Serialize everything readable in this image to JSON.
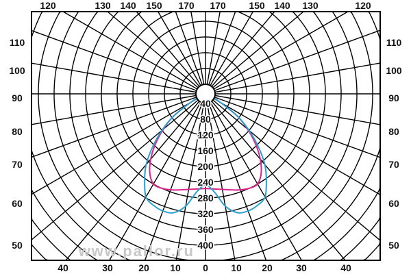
{
  "chart_data": {
    "type": "polar",
    "angle_unit": "degrees",
    "angle_ticks_bottom": [
      "40",
      "30",
      "20",
      "10",
      "0",
      "10",
      "20",
      "30",
      "40"
    ],
    "angle_ticks_top": [
      "120",
      "130",
      "140",
      "150",
      "170",
      "170",
      "150",
      "140",
      "130",
      "120"
    ],
    "angle_ticks_left": [
      "110",
      "100",
      "90",
      "80",
      "70",
      "60",
      "50"
    ],
    "angle_ticks_right": [
      "110",
      "100",
      "90",
      "80",
      "70",
      "60",
      "50"
    ],
    "radial_ticks": [
      "40",
      "80",
      "120",
      "160",
      "200",
      "240",
      "280",
      "320",
      "360",
      "400"
    ],
    "radial_step": 40,
    "grid": true,
    "angle_step_grid": 10,
    "symmetric": true,
    "series": [
      {
        "color": "#d6248a",
        "angles": [
          0,
          5,
          10,
          15,
          20,
          25,
          30,
          35,
          40,
          45,
          50,
          55,
          60,
          65
        ],
        "values": [
          256,
          258,
          262,
          268,
          275,
          280,
          280,
          262,
          232,
          195,
          155,
          115,
          60,
          30
        ]
      },
      {
        "color": "#2a9fce",
        "angles": [
          0,
          5,
          10,
          15,
          20,
          25,
          30,
          35,
          40,
          45,
          50,
          55,
          60,
          65
        ],
        "values": [
          247,
          265,
          305,
          328,
          332,
          328,
          318,
          285,
          250,
          205,
          160,
          115,
          60,
          30
        ]
      }
    ]
  },
  "watermark": "www.pallor.ru"
}
